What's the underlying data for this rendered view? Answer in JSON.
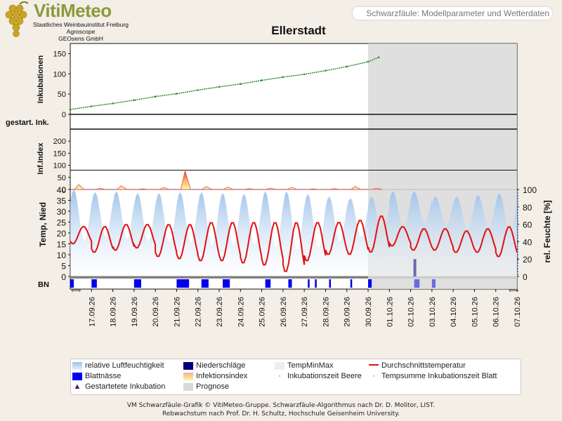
{
  "header": {
    "logo_title": "VitiMeteo",
    "logo_lines": [
      "Staatliches Weinbauinstitut Freiburg",
      "Agroscope",
      "GEOsens GmbH"
    ],
    "subtitle": "Schwarzfäule: Modellparameter und Wetterdaten",
    "title": "Ellerstadt"
  },
  "colors": {
    "incubation": "#2e8b2e",
    "temperature": "#e01010",
    "humidity": "#9fc3ea",
    "leaf_wetness": "#0000ee",
    "precipitation": "#000080",
    "forecast": "#d9d9d9",
    "infection_index": "#f2a07a"
  },
  "chart_data": [
    {
      "type": "line",
      "ylabel": "Inkubationen",
      "ylim": [
        0,
        175
      ],
      "yticks": [
        0,
        50,
        100,
        150
      ],
      "forecast_from": "30.09.26",
      "series": [
        {
          "name": "Tempsumme Inkubationszeit Blatt",
          "x": [
            "16.09.26",
            "17.09.26",
            "18.09.26",
            "19.09.26",
            "20.09.26",
            "21.09.26",
            "22.09.26",
            "23.09.26",
            "24.09.26",
            "25.09.26",
            "26.09.26",
            "27.09.26",
            "28.09.26",
            "29.09.26",
            "30.09.26",
            "30.09.26 12:00"
          ],
          "y": [
            12,
            20,
            27,
            35,
            44,
            51,
            60,
            68,
            75,
            84,
            92,
            99,
            108,
            118,
            130,
            141
          ]
        }
      ]
    },
    {
      "type": "bar",
      "ylabel": "gestart. Ink.",
      "values": []
    },
    {
      "type": "area",
      "ylabel": "Inf.Index",
      "ylim": [
        0,
        250
      ],
      "yticks": [
        0,
        50,
        100,
        150,
        200
      ],
      "series": [
        {
          "name": "Infektionsindex",
          "x": [
            "16.09.26",
            "17.09.26",
            "18.09.26",
            "19.09.26",
            "20.09.26",
            "21.09.26",
            "22.09.26",
            "23.09.26",
            "24.09.26",
            "25.09.26",
            "26.09.26",
            "27.09.26",
            "28.09.26",
            "29.09.26",
            "30.09.26"
          ],
          "y": [
            20,
            5,
            15,
            3,
            8,
            78,
            12,
            10,
            4,
            6,
            9,
            3,
            4,
            12,
            5
          ]
        }
      ]
    },
    {
      "type": "line",
      "ylabel": "Temp, Nied",
      "y2label": "rel. Feuchte [%]",
      "ylim": [
        0,
        40
      ],
      "yticks": [
        0,
        5,
        10,
        15,
        20,
        25,
        30,
        35,
        40
      ],
      "y2lim": [
        0,
        100
      ],
      "y2ticks": [
        0,
        20,
        40,
        60,
        80,
        100
      ],
      "x_tick_labels": [
        "17.09.26",
        "18.09.26",
        "19.09.26",
        "20.09.26",
        "21.09.26",
        "22.09.26",
        "23.09.26",
        "24.09.26",
        "25.09.26",
        "26.09.26",
        "27.09.26",
        "28.09.26",
        "29.09.26",
        "30.09.26",
        "01.10.26",
        "02.10.26",
        "03.10.26",
        "04.10.26",
        "05.10.26",
        "06.10.26",
        "07.10.26"
      ],
      "series": [
        {
          "name": "Durchschnittstemperatur",
          "x": [
            "16.09.26",
            "17.09.26",
            "18.09.26",
            "19.09.26",
            "20.09.26",
            "21.09.26",
            "22.09.26",
            "23.09.26",
            "24.09.26",
            "25.09.26",
            "26.09.26",
            "27.09.26",
            "28.09.26",
            "29.09.26",
            "30.09.26",
            "01.10.26",
            "02.10.26",
            "03.10.26",
            "04.10.26",
            "05.10.26",
            "06.10.26"
          ],
          "daily_max": [
            23,
            23,
            24,
            24,
            24,
            24,
            25,
            25,
            25,
            25,
            25,
            25,
            25,
            26,
            28,
            23,
            22,
            22,
            21,
            22,
            23
          ],
          "daily_min": [
            15,
            11,
            12,
            13,
            9,
            8,
            7,
            7,
            6,
            5,
            2,
            7,
            10,
            10,
            11,
            14,
            12,
            12,
            11,
            11,
            9
          ]
        },
        {
          "name": "relative Luftfeuchtigkeit",
          "x": [
            "16.09.26",
            "17.09.26",
            "18.09.26",
            "19.09.26",
            "20.09.26",
            "21.09.26",
            "22.09.26",
            "23.09.26",
            "24.09.26",
            "25.09.26",
            "26.09.26",
            "27.09.26",
            "28.09.26",
            "29.09.26",
            "30.09.26",
            "01.10.26",
            "02.10.26",
            "03.10.26",
            "04.10.26",
            "05.10.26",
            "06.10.26"
          ],
          "daily_max": [
            100,
            97,
            98,
            96,
            96,
            97,
            97,
            96,
            95,
            98,
            98,
            95,
            92,
            90,
            92,
            98,
            98,
            92,
            92,
            94,
            96
          ],
          "daily_min": [
            40,
            45,
            42,
            40,
            38,
            38,
            35,
            35,
            36,
            32,
            30,
            32,
            40,
            45,
            45,
            55,
            60,
            58,
            55,
            55,
            50
          ]
        },
        {
          "name": "Niederschläge",
          "x": [
            "02.10.26"
          ],
          "y": [
            8
          ]
        }
      ]
    },
    {
      "type": "bar",
      "ylabel": "BN",
      "series": [
        {
          "name": "Blattnässe",
          "intervals": [
            [
              "16.09.26 00:00",
              "16.09.26 04:00"
            ],
            [
              "17.09.26 00:00",
              "17.09.26 06:00"
            ],
            [
              "19.09.26 00:00",
              "19.09.26 08:00"
            ],
            [
              "21.09.26 00:00",
              "21.09.26 14:00"
            ],
            [
              "22.09.26 04:00",
              "22.09.26 12:00"
            ],
            [
              "23.09.26 04:00",
              "23.09.26 12:00"
            ],
            [
              "25.09.26 04:00",
              "25.09.26 10:00"
            ],
            [
              "26.09.26 06:00",
              "26.09.26 10:00"
            ],
            [
              "27.09.26 04:00",
              "27.09.26 06:00"
            ],
            [
              "27.09.26 12:00",
              "27.09.26 14:00"
            ],
            [
              "28.09.26 04:00",
              "28.09.26 06:00"
            ],
            [
              "29.09.26 04:00",
              "29.09.26 06:00"
            ],
            [
              "30.09.26 00:00",
              "30.09.26 04:00"
            ],
            [
              "02.10.26 04:00",
              "02.10.26 10:00"
            ],
            [
              "03.10.26 00:00",
              "03.10.26 04:00"
            ]
          ]
        }
      ]
    }
  ],
  "legend": [
    {
      "key": "humidity",
      "label": "relative Luftfeuchtigkeit"
    },
    {
      "key": "precipitation",
      "label": "Niederschläge"
    },
    {
      "key": "tempminmax",
      "label": "TempMinMax"
    },
    {
      "key": "temperature",
      "label": "Durchschnittstemperatur"
    },
    {
      "key": "leaf_wetness",
      "label": "Blattnässe"
    },
    {
      "key": "infection_index",
      "label": "Infektionsindex"
    },
    {
      "key": "incubation_berry",
      "label": "Inkubationszeit Beere"
    },
    {
      "key": "incubation_leaf",
      "label": "Tempsumme Inkubationszeit Blatt"
    },
    {
      "key": "started_incubation",
      "label": "Gestartetete Inkubation"
    },
    {
      "key": "forecast",
      "label": "Prognose"
    }
  ],
  "footer": {
    "line1": "VM Schwarzfäule-Grafik © VitiMeteo-Gruppe. Schwarzfäule-Algorithmus nach Dr. D. Molitor, LIST.",
    "line2": "Rebwachstum nach Prof. Dr. H. Schultz, Hochschule Geisenheim University."
  }
}
